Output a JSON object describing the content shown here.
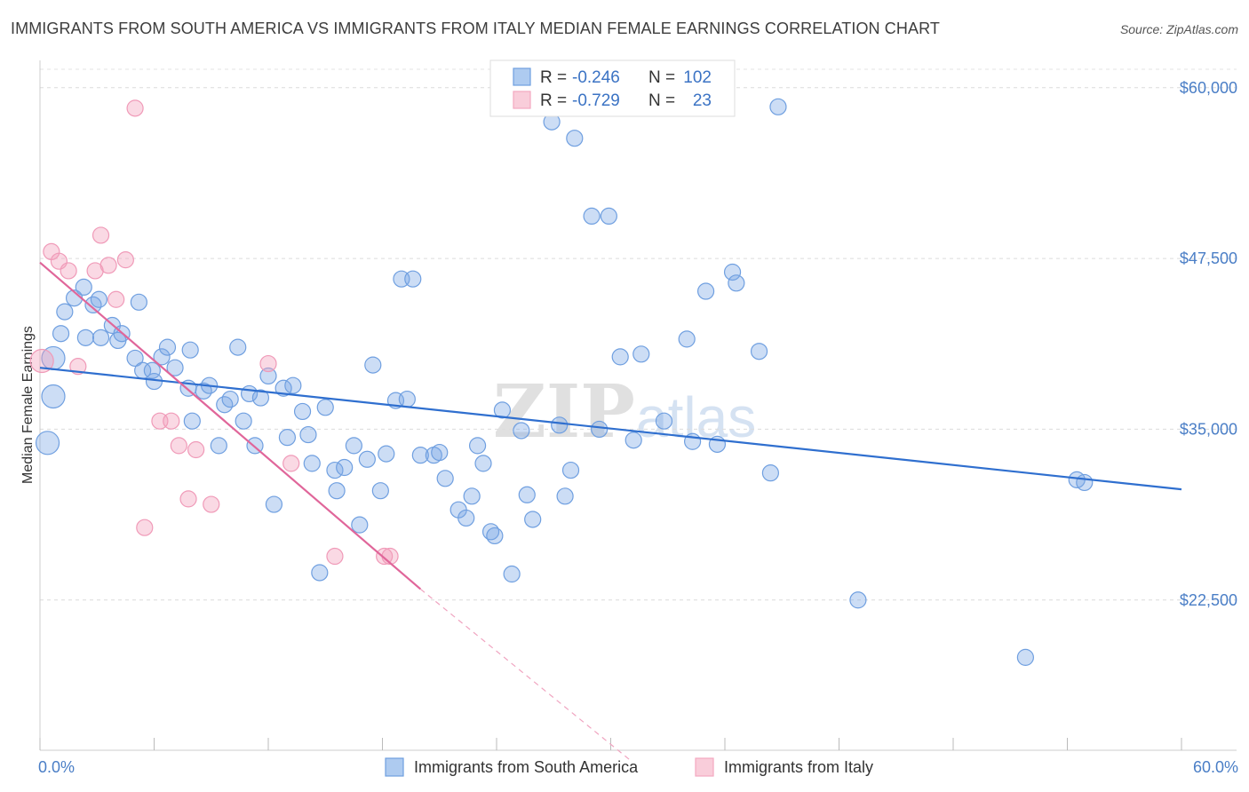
{
  "header": {
    "title": "IMMIGRANTS FROM SOUTH AMERICA VS IMMIGRANTS FROM ITALY MEDIAN FEMALE EARNINGS CORRELATION CHART",
    "source": "Source: ZipAtlas.com"
  },
  "watermark": {
    "zip": "ZIP",
    "atlas": "atlas"
  },
  "legend_top": {
    "rows": [
      {
        "r_label": "R =",
        "r_value": "-0.246",
        "n_label": "N =",
        "n_value": "102"
      },
      {
        "r_label": "R =",
        "r_value": "-0.729",
        "n_label": "N =",
        "n_value": "23"
      }
    ]
  },
  "legend_bottom": {
    "items": [
      {
        "label": "Immigrants from South America"
      },
      {
        "label": "Immigrants from Italy"
      }
    ]
  },
  "chart_data": {
    "type": "scatter",
    "title": "IMMIGRANTS FROM SOUTH AMERICA VS IMMIGRANTS FROM ITALY MEDIAN FEMALE EARNINGS CORRELATION CHART",
    "xlabel": "",
    "ylabel": "Median Female Earnings",
    "xlim": [
      0,
      60
    ],
    "ylim": [
      11500,
      62000
    ],
    "x_tick_labels": [
      "0.0%",
      "60.0%"
    ],
    "y_ticks": [
      22500,
      35000,
      47500,
      60000
    ],
    "y_tick_labels": [
      "$22,500",
      "$35,000",
      "$47,500",
      "$60,000"
    ],
    "grid": true,
    "legend_position": "top-center",
    "series": [
      {
        "name": "Immigrants from South America",
        "color": "#6f9fe0",
        "line_color": "#2f6fcf",
        "trend": {
          "x0": 0,
          "y0": 39500,
          "x1": 60,
          "y1": 30600
        },
        "points": [
          [
            0.7,
            40200
          ],
          [
            0.7,
            37400
          ],
          [
            0.4,
            34000
          ],
          [
            1.1,
            42000
          ],
          [
            1.3,
            43600
          ],
          [
            1.8,
            44600
          ],
          [
            2.3,
            45400
          ],
          [
            2.4,
            41700
          ],
          [
            2.8,
            44100
          ],
          [
            3.1,
            44500
          ],
          [
            3.2,
            41700
          ],
          [
            3.8,
            42600
          ],
          [
            4.1,
            41500
          ],
          [
            4.3,
            42000
          ],
          [
            5.0,
            40200
          ],
          [
            5.2,
            44300
          ],
          [
            5.4,
            39300
          ],
          [
            5.9,
            39300
          ],
          [
            6.0,
            38500
          ],
          [
            6.4,
            40300
          ],
          [
            6.7,
            41000
          ],
          [
            7.1,
            39500
          ],
          [
            7.8,
            38000
          ],
          [
            8.0,
            35600
          ],
          [
            7.9,
            40800
          ],
          [
            8.6,
            37800
          ],
          [
            8.9,
            38200
          ],
          [
            9.4,
            33800
          ],
          [
            9.7,
            36800
          ],
          [
            10.0,
            37200
          ],
          [
            10.4,
            41000
          ],
          [
            10.7,
            35600
          ],
          [
            11.0,
            37600
          ],
          [
            11.3,
            33800
          ],
          [
            11.6,
            37300
          ],
          [
            12.0,
            38900
          ],
          [
            12.3,
            29500
          ],
          [
            12.8,
            38000
          ],
          [
            13.0,
            34400
          ],
          [
            13.3,
            38200
          ],
          [
            13.8,
            36300
          ],
          [
            14.1,
            34600
          ],
          [
            14.3,
            32500
          ],
          [
            14.7,
            24500
          ],
          [
            15.0,
            36600
          ],
          [
            15.5,
            32000
          ],
          [
            15.6,
            30500
          ],
          [
            16.0,
            32200
          ],
          [
            16.5,
            33800
          ],
          [
            16.8,
            28000
          ],
          [
            17.2,
            32800
          ],
          [
            17.5,
            39700
          ],
          [
            17.9,
            30500
          ],
          [
            18.2,
            33200
          ],
          [
            18.7,
            37100
          ],
          [
            19.0,
            46000
          ],
          [
            19.3,
            37200
          ],
          [
            19.6,
            46000
          ],
          [
            20.0,
            33100
          ],
          [
            20.7,
            33100
          ],
          [
            21.0,
            33300
          ],
          [
            21.3,
            31400
          ],
          [
            22.0,
            29100
          ],
          [
            22.4,
            28500
          ],
          [
            22.7,
            30100
          ],
          [
            23.0,
            33800
          ],
          [
            23.3,
            32500
          ],
          [
            23.7,
            27500
          ],
          [
            23.9,
            27200
          ],
          [
            24.3,
            36400
          ],
          [
            24.8,
            24400
          ],
          [
            25.3,
            34900
          ],
          [
            25.6,
            30200
          ],
          [
            25.9,
            28400
          ],
          [
            26.9,
            57500
          ],
          [
            27.3,
            35300
          ],
          [
            27.6,
            30100
          ],
          [
            27.9,
            32000
          ],
          [
            28.1,
            56300
          ],
          [
            29.0,
            50600
          ],
          [
            29.4,
            35000
          ],
          [
            29.9,
            50600
          ],
          [
            30.5,
            40300
          ],
          [
            31.2,
            34200
          ],
          [
            31.6,
            40500
          ],
          [
            32.8,
            35600
          ],
          [
            34.0,
            41600
          ],
          [
            34.3,
            34100
          ],
          [
            35.0,
            45100
          ],
          [
            35.6,
            33900
          ],
          [
            36.4,
            46500
          ],
          [
            36.6,
            45700
          ],
          [
            37.8,
            40700
          ],
          [
            38.4,
            31800
          ],
          [
            38.8,
            58600
          ],
          [
            43.0,
            22500
          ],
          [
            51.8,
            18300
          ],
          [
            54.5,
            31300
          ],
          [
            54.9,
            31100
          ]
        ]
      },
      {
        "name": "Immigrants from Italy",
        "color": "#f3a8c0",
        "line_color": "#e0669a",
        "trend": {
          "x0": 0,
          "y0": 47200,
          "x1": 20,
          "y1": 23300
        },
        "trend_dashed": {
          "x0": 20,
          "y0": 23300,
          "x1": 31,
          "y1": 10800
        },
        "points": [
          [
            0.1,
            40000
          ],
          [
            0.6,
            48000
          ],
          [
            1.0,
            47300
          ],
          [
            1.5,
            46600
          ],
          [
            2.0,
            39600
          ],
          [
            2.9,
            46600
          ],
          [
            3.2,
            49200
          ],
          [
            3.6,
            47000
          ],
          [
            4.0,
            44500
          ],
          [
            4.5,
            47400
          ],
          [
            5.0,
            58500
          ],
          [
            5.5,
            27800
          ],
          [
            6.3,
            35600
          ],
          [
            6.9,
            35600
          ],
          [
            7.3,
            33800
          ],
          [
            7.8,
            29900
          ],
          [
            8.2,
            33500
          ],
          [
            9.0,
            29500
          ],
          [
            12.0,
            39800
          ],
          [
            13.2,
            32500
          ],
          [
            15.5,
            25700
          ],
          [
            18.1,
            25700
          ],
          [
            18.4,
            25700
          ]
        ]
      }
    ]
  }
}
